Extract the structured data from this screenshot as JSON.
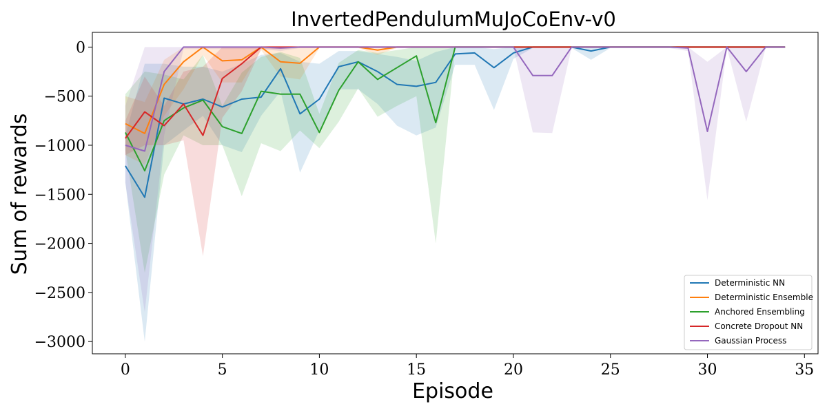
{
  "chart_data": {
    "type": "line",
    "title": "InvertedPendulumMuJoCoEnv-v0",
    "xlabel": "Episode",
    "ylabel": "Sum of rewards",
    "xlim": [
      -1.7,
      35.7
    ],
    "ylim": [
      -3125,
      150
    ],
    "xticks": [
      0,
      5,
      10,
      15,
      20,
      25,
      30,
      35
    ],
    "yticks": [
      0,
      -500,
      -1000,
      -1500,
      -2000,
      -2500,
      -3000
    ],
    "xtick_labels": [
      "0",
      "5",
      "10",
      "15",
      "20",
      "25",
      "30",
      "35"
    ],
    "ytick_labels": [
      "0",
      "−500",
      "−1000",
      "−1500",
      "−2000",
      "−2500",
      "−3000"
    ],
    "grid": false,
    "legend_position": "lower-right",
    "series": [
      {
        "name": "Deterministic NN",
        "color": "#1f77b4",
        "x": [
          0,
          1,
          2,
          3,
          4,
          5,
          6,
          7,
          8,
          9,
          10,
          11,
          12,
          13,
          14,
          15,
          16,
          17,
          18,
          19,
          20,
          21,
          22,
          23,
          24,
          25,
          26,
          27,
          28,
          29,
          30,
          31,
          32,
          33,
          34
        ],
        "y": [
          -1210,
          -1530,
          -520,
          -580,
          -530,
          -610,
          -530,
          -510,
          -220,
          -680,
          -530,
          -200,
          -150,
          -250,
          -380,
          -400,
          -360,
          -70,
          -60,
          -210,
          -60,
          0,
          0,
          0,
          -40,
          0,
          0,
          0,
          0,
          0,
          0,
          0,
          0,
          0,
          0
        ],
        "lower": [
          -1380,
          -3000,
          -1000,
          -850,
          -700,
          -1000,
          -1070,
          -700,
          -450,
          -1280,
          -850,
          -430,
          -430,
          -580,
          -800,
          -900,
          -820,
          -180,
          -180,
          -640,
          -120,
          -10,
          -10,
          -10,
          -130,
          -10,
          -10,
          -10,
          -10,
          -10,
          -10,
          -10,
          -10,
          -10,
          -10
        ],
        "upper": [
          -900,
          -170,
          -170,
          -200,
          -200,
          -250,
          -170,
          -80,
          -60,
          -150,
          -170,
          -40,
          -40,
          -70,
          -100,
          -140,
          -50,
          0,
          0,
          -20,
          0,
          0,
          0,
          0,
          0,
          0,
          0,
          0,
          0,
          0,
          0,
          0,
          0,
          0,
          0
        ]
      },
      {
        "name": "Deterministic Ensemble",
        "color": "#ff7f0e",
        "x": [
          0,
          1,
          2,
          3,
          4,
          5,
          6,
          7,
          8,
          9,
          10,
          11,
          12,
          13,
          14,
          15,
          16,
          17,
          18,
          19,
          20,
          21,
          22,
          23,
          24,
          25,
          26,
          27,
          28,
          29,
          30,
          31,
          32,
          33,
          34
        ],
        "y": [
          -780,
          -880,
          -380,
          -150,
          0,
          -140,
          -130,
          0,
          -150,
          -165,
          0,
          0,
          0,
          -30,
          0,
          0,
          0,
          0,
          0,
          0,
          0,
          0,
          0,
          0,
          0,
          0,
          0,
          0,
          0,
          0,
          0,
          0,
          0,
          0,
          0
        ],
        "lower": [
          -1100,
          -1200,
          -700,
          -430,
          -80,
          -360,
          -360,
          -30,
          -300,
          -330,
          -10,
          -10,
          -10,
          -80,
          -10,
          -10,
          -10,
          -10,
          -10,
          -10,
          -10,
          -10,
          -10,
          -10,
          -10,
          -10,
          -10,
          -10,
          -10,
          -10,
          -10,
          -10,
          -10,
          -10,
          -10
        ],
        "upper": [
          -500,
          -560,
          -130,
          0,
          0,
          0,
          0,
          0,
          0,
          0,
          0,
          0,
          0,
          0,
          0,
          0,
          0,
          0,
          0,
          0,
          0,
          0,
          0,
          0,
          0,
          0,
          0,
          0,
          0,
          0,
          0,
          0,
          0,
          0,
          0
        ]
      },
      {
        "name": "Anchored Ensembling",
        "color": "#2ca02c",
        "x": [
          0,
          1,
          2,
          3,
          4,
          5,
          6,
          7,
          8,
          9,
          10,
          11,
          12,
          13,
          14,
          15,
          16,
          17,
          18,
          19,
          20,
          21,
          22,
          23,
          24,
          25,
          26,
          27,
          28,
          29,
          30,
          31,
          32,
          33,
          34
        ],
        "y": [
          -870,
          -1260,
          -750,
          -620,
          -540,
          -810,
          -880,
          -450,
          -480,
          -480,
          -870,
          -440,
          -150,
          -330,
          -210,
          -90,
          -770,
          0,
          0,
          0,
          0,
          0,
          0,
          0,
          0,
          0,
          0,
          0,
          0,
          0,
          0,
          0,
          0,
          0,
          0
        ],
        "lower": [
          -1050,
          -2300,
          -1300,
          -900,
          -1000,
          -1000,
          -1520,
          -980,
          -1060,
          -850,
          -1030,
          -760,
          -420,
          -710,
          -600,
          -500,
          -2000,
          -10,
          -10,
          -10,
          -10,
          -10,
          -10,
          -10,
          -10,
          -10,
          -10,
          -10,
          -10,
          -10,
          -10,
          -10,
          -10,
          -10,
          -10
        ],
        "upper": [
          -480,
          -250,
          -280,
          -330,
          -80,
          -600,
          -260,
          -100,
          -50,
          -110,
          -680,
          -160,
          -30,
          -60,
          -30,
          0,
          0,
          0,
          0,
          0,
          0,
          0,
          0,
          0,
          0,
          0,
          0,
          0,
          0,
          0,
          0,
          0,
          0,
          0,
          0
        ]
      },
      {
        "name": "Concrete Dropout NN",
        "color": "#d62728",
        "x": [
          0,
          1,
          2,
          3,
          4,
          5,
          6,
          7,
          8,
          9,
          10,
          11,
          12,
          13,
          14,
          15,
          16,
          17,
          18,
          19,
          20,
          21,
          22,
          23,
          24,
          25,
          26,
          27,
          28,
          29,
          30,
          31,
          32,
          33,
          34
        ],
        "y": [
          -930,
          -660,
          -800,
          -580,
          -900,
          -320,
          -170,
          0,
          0,
          0,
          0,
          0,
          0,
          0,
          0,
          0,
          0,
          0,
          0,
          0,
          0,
          0,
          0,
          0,
          0,
          0,
          0,
          0,
          0,
          0,
          0,
          0,
          0,
          0,
          0
        ],
        "lower": [
          -1100,
          -1000,
          -1000,
          -950,
          -2130,
          -720,
          -450,
          -20,
          -20,
          -10,
          -10,
          -10,
          -10,
          -10,
          -10,
          -10,
          -10,
          -10,
          -10,
          -10,
          -10,
          -10,
          -10,
          -10,
          -10,
          -10,
          -10,
          -10,
          -10,
          -10,
          -10,
          -10,
          -10,
          -10,
          -10
        ],
        "upper": [
          -750,
          -300,
          -600,
          -250,
          -200,
          0,
          0,
          0,
          0,
          0,
          0,
          0,
          0,
          0,
          0,
          0,
          0,
          0,
          0,
          0,
          0,
          0,
          0,
          0,
          0,
          0,
          0,
          0,
          0,
          0,
          0,
          0,
          0,
          0,
          0
        ]
      },
      {
        "name": "Gaussian Process",
        "color": "#9467bd",
        "x": [
          0,
          1,
          2,
          3,
          4,
          5,
          6,
          7,
          8,
          9,
          10,
          11,
          12,
          13,
          14,
          15,
          16,
          17,
          18,
          19,
          20,
          21,
          22,
          23,
          24,
          25,
          26,
          27,
          28,
          29,
          30,
          31,
          32,
          33,
          34
        ],
        "y": [
          -1000,
          -1060,
          -250,
          0,
          0,
          0,
          0,
          0,
          -10,
          0,
          0,
          0,
          0,
          0,
          0,
          0,
          0,
          0,
          0,
          0,
          0,
          -290,
          -290,
          0,
          0,
          0,
          0,
          0,
          0,
          -10,
          -860,
          0,
          -250,
          0,
          0
        ],
        "lower": [
          -1380,
          -2700,
          -900,
          -20,
          -20,
          -20,
          -20,
          -20,
          -40,
          -10,
          -10,
          -10,
          -10,
          -10,
          -10,
          -10,
          -10,
          -10,
          -10,
          -10,
          -10,
          -870,
          -875,
          -10,
          -10,
          -10,
          -10,
          -10,
          -10,
          -40,
          -1560,
          -10,
          -760,
          -10,
          -10
        ],
        "upper": [
          -600,
          0,
          0,
          0,
          0,
          0,
          0,
          0,
          0,
          0,
          0,
          0,
          0,
          0,
          0,
          0,
          0,
          0,
          0,
          0,
          0,
          0,
          0,
          0,
          0,
          0,
          0,
          0,
          0,
          0,
          -150,
          0,
          0,
          0,
          0
        ]
      }
    ]
  }
}
